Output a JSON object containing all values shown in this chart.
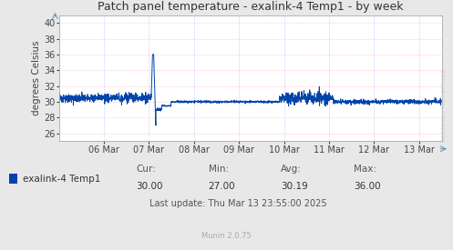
{
  "title": "Patch panel temperature - exalink-4 Temp1 - by week",
  "ylabel": "degrees Celsius",
  "ylim": [
    25.0,
    41.0
  ],
  "yticks": [
    26,
    28,
    30,
    32,
    34,
    36,
    38,
    40
  ],
  "background_color": "#e8e8e8",
  "plot_bg_color": "#ffffff",
  "grid_color_h": "#ffaaaa",
  "grid_color_v": "#aaaaff",
  "line_color": "#0044aa",
  "legend_label": "exalink-4 Temp1",
  "legend_color": "#0044aa",
  "cur": "30.00",
  "min_val": "27.00",
  "avg": "30.19",
  "max_val": "36.00",
  "last_update": "Last update: Thu Mar 13 23:55:00 2025",
  "munin_version": "Munin 2.0.75",
  "watermark": "RRDTOOL / TOBI OETIKER",
  "x_tick_labels": [
    "06 Mar",
    "07 Mar",
    "08 Mar",
    "09 Mar",
    "10 Mar",
    "11 Mar",
    "12 Mar",
    "13 Mar"
  ],
  "x_tick_positions": [
    1,
    2,
    3,
    4,
    5,
    6,
    7,
    8
  ],
  "xlim": [
    0,
    8.5
  ]
}
